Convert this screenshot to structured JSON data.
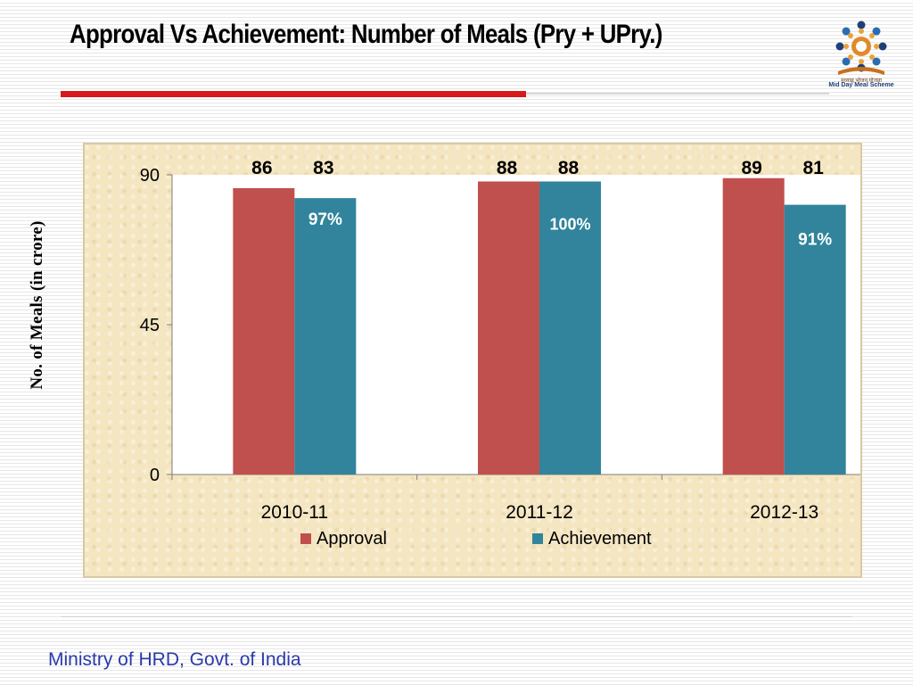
{
  "slide": {
    "title": "Approval Vs Achievement:  Number of Meals (Pry + UPry.)",
    "footer": "Ministry of HRD, Govt. of India",
    "logo_caption": "Mid Day Meal Scheme",
    "logo_sub": "मध्याह्न भोजन योजना"
  },
  "chart_data": {
    "type": "bar",
    "title": "",
    "xlabel": "",
    "ylabel": "No. of Meals (in crore)",
    "categories": [
      "2010-11",
      "2011-12",
      "2012-13"
    ],
    "series": [
      {
        "name": "Approval",
        "values": [
          86,
          88,
          89
        ],
        "color": "#c0504d"
      },
      {
        "name": "Achievement",
        "values": [
          83,
          88,
          81
        ],
        "color": "#31849b"
      }
    ],
    "data_labels": {
      "Approval": [
        "86",
        "88",
        "89"
      ],
      "Achievement": [
        "83",
        "88",
        "81"
      ]
    },
    "percent_labels": [
      "97%",
      "100%",
      "91%"
    ],
    "ylim": [
      0,
      90
    ],
    "yticks": [
      0,
      45,
      90
    ],
    "grid": false,
    "legend_position": "bottom",
    "plot_background": "#ffffff"
  }
}
